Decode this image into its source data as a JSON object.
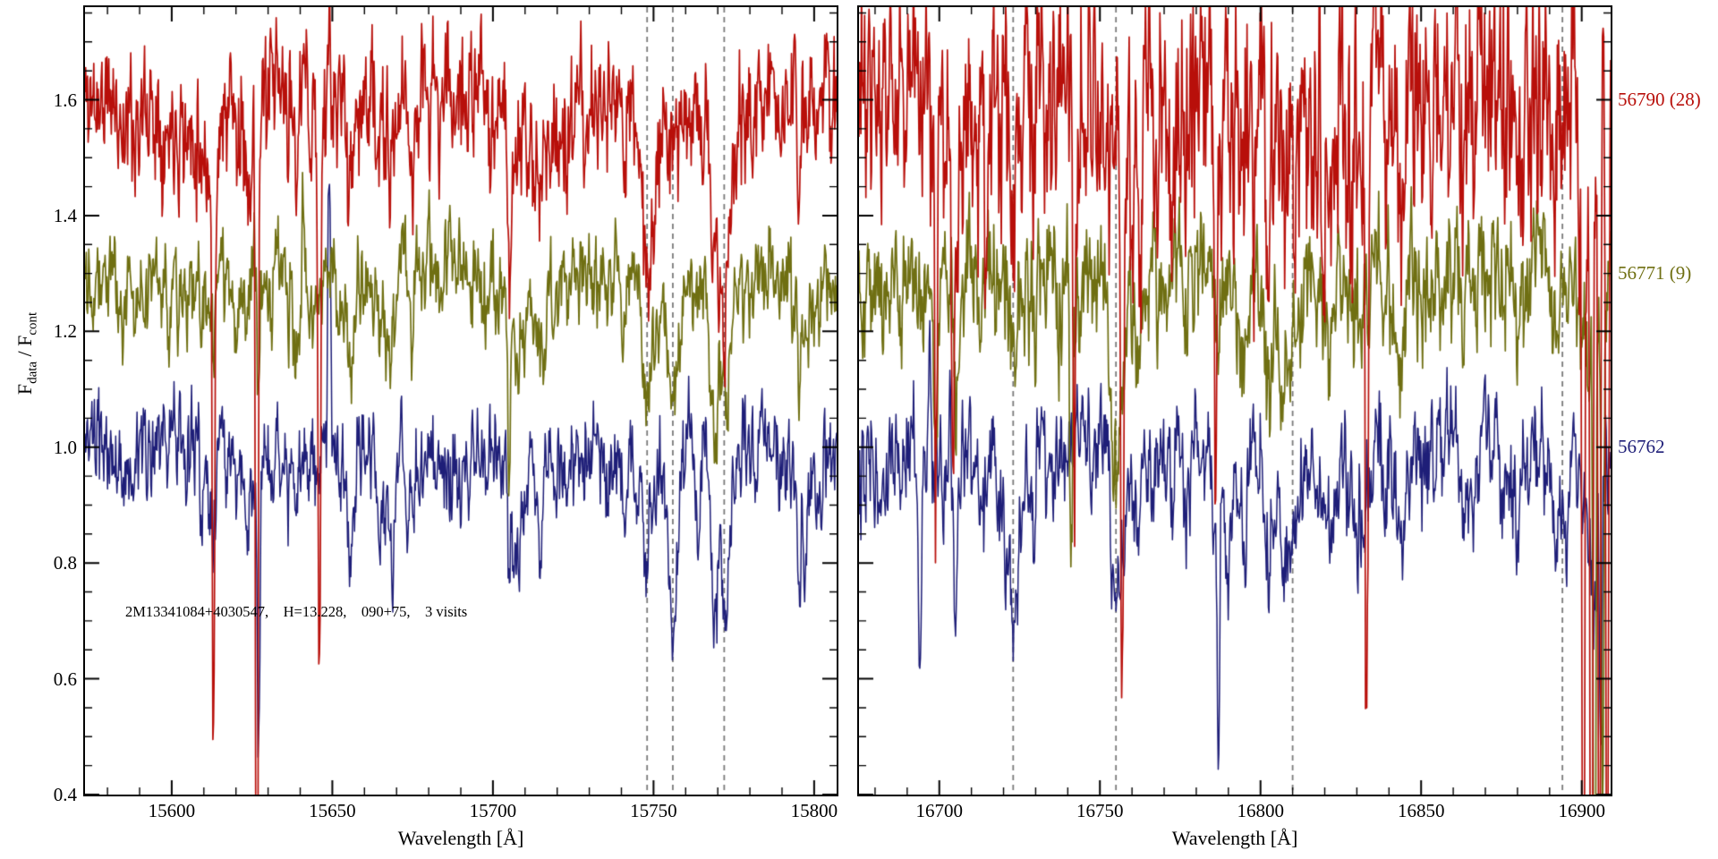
{
  "chart_data": {
    "type": "line",
    "title": "",
    "ylabel": "F_data / F_cont",
    "ylabel_parts": {
      "f1": "F",
      "sub1": "data",
      "mid": " / F",
      "sub2": "cont"
    },
    "annotation": "2M13341084+4030547,    H=13.228,    090+75,    3 visits",
    "ylim": [
      0.4,
      1.76
    ],
    "yticks": [
      0.4,
      0.6,
      0.8,
      1.0,
      1.2,
      1.4,
      1.6
    ],
    "y_minor_step": 0.05,
    "grid": false,
    "legend_position": "right-outside",
    "dashed_line_color": "#7a7a7a",
    "series": [
      {
        "label": "56790 (28)",
        "color": "#b80f0a",
        "baseline": 1.6,
        "line_scale": 0.85,
        "line_width": 1.7
      },
      {
        "label": "56771 (9)",
        "color": "#6f6f12",
        "baseline": 1.3,
        "line_scale": 0.95,
        "line_width": 1.7
      },
      {
        "label": "56762",
        "color": "#1e1e78",
        "baseline": 1.0,
        "line_scale": 1.1,
        "line_width": 1.5
      }
    ],
    "panels": [
      {
        "name": "left",
        "xlabel": "Wavelength [Å]",
        "xlim": [
          15573,
          15807
        ],
        "xticks": [
          15600,
          15650,
          15700,
          15750,
          15800
        ],
        "x_minor": 10,
        "dashed_lines": [
          15748,
          15756,
          15772
        ],
        "line_seed": 101,
        "per_series": [
          {
            "seed": 11,
            "noise": 0.05,
            "features": [
              {
                "x": 15748,
                "d": 0.22,
                "w": 2.6
              },
              {
                "x": 15772,
                "d": 0.34,
                "w": 2.8
              }
            ],
            "spikes": [
              {
                "x": 15613,
                "d": 0.95
              },
              {
                "x": 15626.5,
                "d": 1.55
              },
              {
                "x": 15646,
                "d": 0.97
              },
              {
                "x": 15705,
                "d": 0.32
              }
            ]
          },
          {
            "seed": 22,
            "noise": 0.034,
            "features": [
              {
                "x": 15748,
                "d": 0.13,
                "w": 2.2
              },
              {
                "x": 15756,
                "d": 0.15,
                "w": 2.0
              },
              {
                "x": 15772,
                "d": 0.16,
                "w": 2.4
              }
            ],
            "spikes": [
              {
                "x": 15627,
                "d": 0.22
              },
              {
                "x": 15705,
                "d": 0.28
              },
              {
                "x": 15641,
                "d": -0.18
              }
            ]
          },
          {
            "seed": 33,
            "noise": 0.036,
            "features": [
              {
                "x": 15748,
                "d": 0.1,
                "w": 2.0
              },
              {
                "x": 15756,
                "d": 0.3,
                "w": 1.9
              },
              {
                "x": 15764,
                "d": 0.1,
                "w": 1.8
              },
              {
                "x": 15772,
                "d": 0.26,
                "w": 2.3
              }
            ],
            "spikes": [
              {
                "x": 15627,
                "d": 0.5
              },
              {
                "x": 15649,
                "d": -0.45
              },
              {
                "x": 15705,
                "d": 0.15
              }
            ]
          }
        ]
      },
      {
        "name": "right",
        "xlabel": "Wavelength [Å]",
        "xlim": [
          16675,
          16909
        ],
        "xticks": [
          16700,
          16750,
          16800,
          16850,
          16900
        ],
        "x_minor": 10,
        "dashed_lines": [
          16723,
          16755,
          16810,
          16894
        ],
        "line_seed": 202,
        "per_series": [
          {
            "seed": 44,
            "noise": 0.095,
            "features": [
              {
                "x": 16723,
                "d": 0.1,
                "w": 2.0
              }
            ],
            "spikes": [
              {
                "x": 16699,
                "d": 0.65
              },
              {
                "x": 16704,
                "d": 0.5
              },
              {
                "x": 16742,
                "d": 0.55
              },
              {
                "x": 16757,
                "d": 0.95
              },
              {
                "x": 16786,
                "d": 0.45
              },
              {
                "x": 16833,
                "d": 1.12
              },
              {
                "x": 16900.5,
                "d": 1.5
              },
              {
                "x": 16903,
                "d": 1.6
              },
              {
                "x": 16905.5,
                "d": 1.45
              },
              {
                "x": 16908,
                "d": 1.3
              }
            ]
          },
          {
            "seed": 55,
            "noise": 0.046,
            "features": [
              {
                "x": 16723,
                "d": 0.12,
                "w": 2.2
              },
              {
                "x": 16755,
                "d": 0.3,
                "w": 2.2
              },
              {
                "x": 16810,
                "d": 0.12,
                "w": 2.0
              }
            ],
            "spikes": [
              {
                "x": 16699,
                "d": 0.3
              },
              {
                "x": 16741,
                "d": 0.5
              },
              {
                "x": 16904,
                "d": 1.0
              },
              {
                "x": 16906.5,
                "d": 0.9
              }
            ]
          },
          {
            "seed": 66,
            "noise": 0.042,
            "features": [
              {
                "x": 16723,
                "d": 0.27,
                "w": 2.4
              },
              {
                "x": 16755,
                "d": 0.27,
                "w": 2.0
              },
              {
                "x": 16790,
                "d": 0.2,
                "w": 1.6
              },
              {
                "x": 16810,
                "d": 0.13,
                "w": 2.0
              },
              {
                "x": 16894,
                "d": 0.1,
                "w": 2.0
              }
            ],
            "spikes": [
              {
                "x": 16694,
                "d": 0.33
              },
              {
                "x": 16697,
                "d": -0.25
              },
              {
                "x": 16787,
                "d": 0.42
              },
              {
                "x": 16906,
                "d": 0.5
              }
            ]
          }
        ]
      }
    ]
  }
}
